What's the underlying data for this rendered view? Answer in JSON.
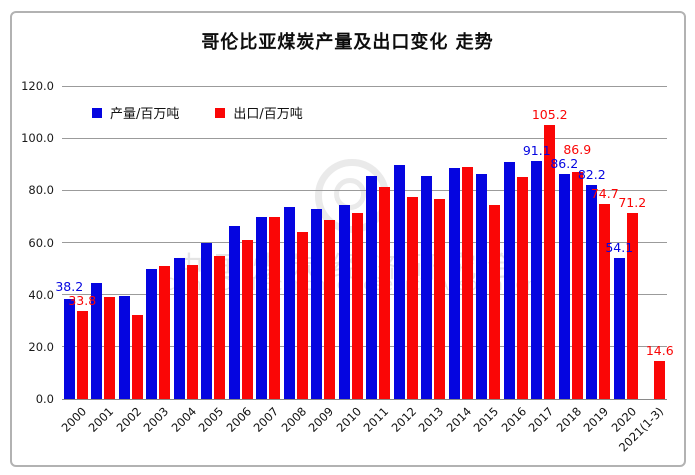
{
  "title": "哥伦比亚煤炭产量及出口变化 走势",
  "legend": {
    "items": [
      {
        "label": "产量/百万吨",
        "color": "#0505e0"
      },
      {
        "label": "出口/百万吨",
        "color": "#fa0606"
      }
    ]
  },
  "watermark": {
    "line1": "中国煤炭经济研究会",
    "line2": "China Coal Economic Research Association"
  },
  "chart_data": {
    "type": "bar",
    "title": "哥伦比亚煤炭产量及出口变化 走势",
    "categories": [
      "2000",
      "2001",
      "2002",
      "2003",
      "2004",
      "2005",
      "2006",
      "2007",
      "2008",
      "2009",
      "2010",
      "2011",
      "2012",
      "2013",
      "2014",
      "2015",
      "2016",
      "2017",
      "2018",
      "2019",
      "2020",
      "2021(1-3)"
    ],
    "series": [
      {
        "name": "产量/百万吨",
        "color": "#0505e0",
        "values": [
          38.2,
          44.3,
          39.5,
          50.0,
          54.0,
          59.8,
          66.3,
          69.9,
          73.7,
          73.0,
          74.3,
          85.5,
          89.7,
          85.5,
          88.6,
          86.3,
          90.8,
          91.1,
          86.2,
          82.2,
          54.1,
          null
        ]
      },
      {
        "name": "出口/百万吨",
        "color": "#fa0606",
        "values": [
          33.8,
          39.0,
          32.2,
          51.0,
          51.5,
          54.8,
          61.0,
          69.6,
          64.0,
          68.5,
          71.5,
          81.3,
          77.5,
          76.7,
          89.0,
          74.5,
          85.0,
          105.2,
          86.9,
          74.7,
          71.2,
          14.6
        ]
      }
    ],
    "data_labels": [
      {
        "ci": 0,
        "si": 0,
        "text": "38.2"
      },
      {
        "ci": 0,
        "si": 1,
        "text": "33.8"
      },
      {
        "ci": 17,
        "si": 0,
        "text": "91.1"
      },
      {
        "ci": 17,
        "si": 1,
        "text": "105.2"
      },
      {
        "ci": 18,
        "si": 0,
        "text": "86.2"
      },
      {
        "ci": 18,
        "si": 1,
        "text": "86.9"
      },
      {
        "ci": 19,
        "si": 0,
        "text": "82.2"
      },
      {
        "ci": 19,
        "si": 1,
        "text": "74.7"
      },
      {
        "ci": 20,
        "si": 0,
        "text": "54.1"
      },
      {
        "ci": 20,
        "si": 1,
        "text": "71.2"
      },
      {
        "ci": 21,
        "si": 1,
        "text": "14.6"
      }
    ],
    "ylim": [
      0,
      120
    ],
    "y_ticks": [
      "0.0",
      "20.0",
      "40.0",
      "60.0",
      "80.0",
      "100.0",
      "120.0"
    ],
    "grid": true,
    "legend_position": "inside-top-left"
  }
}
